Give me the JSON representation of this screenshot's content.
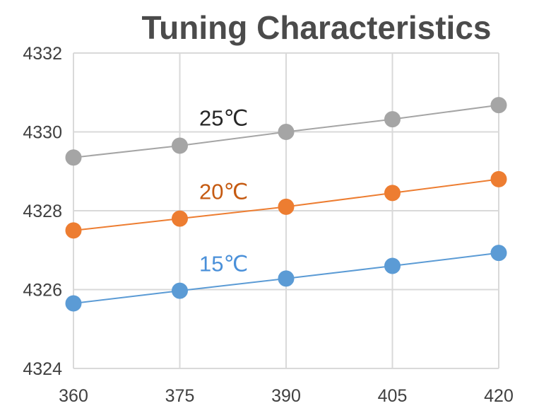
{
  "chart_data": {
    "type": "line",
    "title": "Tuning Characteristics",
    "xlabel": "",
    "ylabel": "",
    "x": [
      360,
      375,
      390,
      405,
      420
    ],
    "xlim": [
      360,
      420
    ],
    "ylim": [
      4324,
      4332
    ],
    "x_ticks": [
      "360",
      "375",
      "390",
      "405",
      "420"
    ],
    "y_ticks": [
      "4324",
      "4326",
      "4328",
      "4330",
      "4332"
    ],
    "grid": true,
    "series": [
      {
        "name": "15℃",
        "color": "#5b9bd5",
        "values": [
          4325.65,
          4325.97,
          4326.28,
          4326.6,
          4326.93
        ]
      },
      {
        "name": "20℃",
        "color": "#ed7d31",
        "values": [
          4327.5,
          4327.8,
          4328.1,
          4328.45,
          4328.8
        ]
      },
      {
        "name": "25℃",
        "color": "#a5a5a5",
        "values": [
          4329.35,
          4329.65,
          4330.0,
          4330.32,
          4330.68
        ]
      }
    ],
    "label_colors": {
      "15℃": "#4a90d9",
      "20℃": "#c55a11",
      "25℃": "#262626"
    }
  }
}
